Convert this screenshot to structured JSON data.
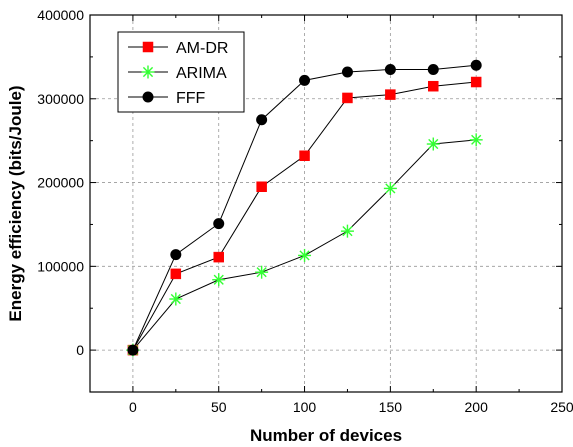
{
  "chart_data": {
    "type": "line",
    "xlabel": "Number of devices",
    "ylabel": "Energy efficiency (bits/Joule)",
    "xlim": [
      -25,
      250
    ],
    "ylim": [
      -50000,
      400000
    ],
    "xticks": [
      0,
      50,
      100,
      150,
      200,
      250
    ],
    "yticks": [
      0,
      100000,
      200000,
      300000,
      400000
    ],
    "xtick_labels": [
      "0",
      "50",
      "100",
      "150",
      "200",
      "250"
    ],
    "ytick_labels": [
      "0",
      "100000",
      "200000",
      "300000",
      "400000"
    ],
    "grid": true,
    "legend_position": "top-left",
    "series": [
      {
        "name": "AM-DR",
        "marker": "square",
        "color": "#ff0000",
        "line_color": "#000000",
        "x": [
          0,
          25,
          50,
          75,
          100,
          125,
          150,
          175,
          200
        ],
        "y": [
          0,
          91000,
          111000,
          195000,
          232000,
          301000,
          305000,
          315000,
          320000
        ]
      },
      {
        "name": "ARIMA",
        "marker": "asterisk",
        "color": "#33ff33",
        "line_color": "#000000",
        "x": [
          0,
          25,
          50,
          75,
          100,
          125,
          150,
          175,
          200
        ],
        "y": [
          0,
          61000,
          84000,
          93000,
          113000,
          142000,
          193000,
          246000,
          251000
        ]
      },
      {
        "name": "FFF",
        "marker": "circle",
        "color": "#000000",
        "line_color": "#000000",
        "x": [
          0,
          25,
          50,
          75,
          100,
          125,
          150,
          175,
          200
        ],
        "y": [
          0,
          114000,
          151000,
          275000,
          322000,
          332000,
          335000,
          335000,
          340000
        ]
      }
    ]
  }
}
